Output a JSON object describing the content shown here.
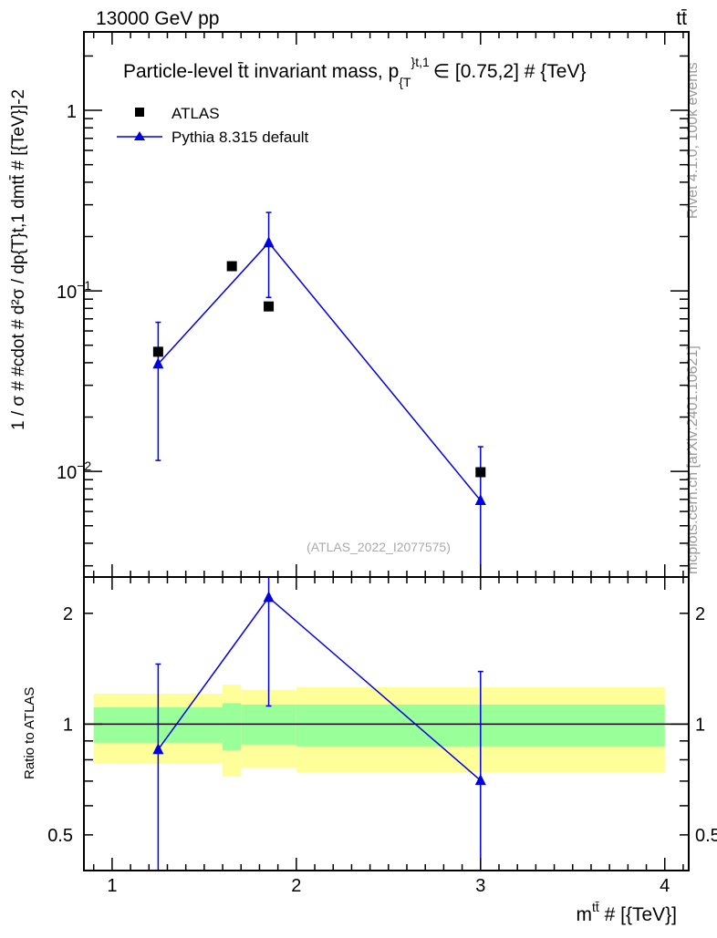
{
  "header": {
    "left": "13000 GeV pp",
    "right": "tt̄"
  },
  "side_labels": {
    "rivet": "Rivet 4.1.0,  100k events",
    "mcplots": "mcplots.cern.ch [arXiv:2401.10621]"
  },
  "analysis_id": "(ATLAS_2022_I2077575)",
  "colors": {
    "data": "#000000",
    "mc": "#0000e0",
    "band_inner": "#99ff99",
    "band_outer": "#ffff99"
  },
  "chart_data": [
    {
      "type": "scatter",
      "panel": "main",
      "title": "Particle-level t̄t invariant mass, p_{T}^{t,1} ∈ [0.75,2] # {TeV}",
      "title_main": "Particle-level t̄t invariant mass, p",
      "title_sub": "{T",
      "title_sup": "}t,1",
      "title_tail": "∈ [0.75,2] # {TeV}",
      "ylabel": "1 / σ # #cdot # d²σ / dp_{T}^{t,1} dm^{tt̄} # [{TeV}^-2]",
      "ylabel_text": "1 / σ # #cdot # d²σ / dp{T}t,1 dmtt̄ # [{TeV}]-2",
      "yscale": "log",
      "xlim": [
        0.847,
        4.13
      ],
      "ylim": [
        0.0026,
        2.72
      ],
      "yticks": [
        {
          "value": 1,
          "label": "1"
        },
        {
          "value": 0.1,
          "label": "10",
          "exp": "−1"
        },
        {
          "value": 0.01,
          "label": "10",
          "exp": "−2"
        }
      ],
      "legend": {
        "placement": "top-left",
        "entries": [
          "ATLAS",
          "Pythia 8.315 default"
        ]
      },
      "series": [
        {
          "name": "ATLAS",
          "marker": "square",
          "x": [
            1.25,
            1.65,
            1.85,
            3.0
          ],
          "y": [
            0.046,
            0.137,
            0.082,
            0.0099
          ]
        },
        {
          "name": "Pythia 8.315 default",
          "marker": "triangle",
          "x": [
            1.25,
            1.85,
            3.0
          ],
          "y": [
            0.0394,
            0.185,
            0.0069
          ],
          "yerr_up": [
            0.067,
            0.272,
            0.0137
          ],
          "yerr_down": [
            0.0115,
            0.092,
            0.001
          ]
        }
      ]
    },
    {
      "type": "line",
      "panel": "ratio",
      "ylabel": "Ratio to ATLAS",
      "xlabel": "m^{tt̄} # [{TeV}]",
      "xlabel_main": "m",
      "xlabel_sup": "tt̄",
      "xlabel_tail": " # [{TeV}]",
      "yscale": "log",
      "xlim": [
        0.847,
        4.13
      ],
      "ylim": [
        0.4,
        2.51
      ],
      "xticks": [
        {
          "value": 1,
          "label": "1"
        },
        {
          "value": 2,
          "label": "2"
        },
        {
          "value": 3,
          "label": "3"
        },
        {
          "value": 4,
          "label": "4"
        }
      ],
      "yticks": [
        {
          "value": 0.5,
          "label": "0.5"
        },
        {
          "value": 1,
          "label": "1"
        },
        {
          "value": 2,
          "label": "2"
        }
      ],
      "bands": [
        {
          "x0": 0.9,
          "x1": 1.6,
          "inner": [
            0.89,
            1.11
          ],
          "outer": [
            0.78,
            1.21
          ]
        },
        {
          "x0": 1.6,
          "x1": 1.7,
          "inner": [
            0.85,
            1.14
          ],
          "outer": [
            0.72,
            1.28
          ]
        },
        {
          "x0": 1.7,
          "x1": 2.0,
          "inner": [
            0.88,
            1.13
          ],
          "outer": [
            0.76,
            1.24
          ]
        },
        {
          "x0": 2.0,
          "x1": 4.0,
          "inner": [
            0.87,
            1.13
          ],
          "outer": [
            0.74,
            1.26
          ]
        }
      ],
      "series": [
        {
          "name": "Pythia 8.315 default / ATLAS",
          "x": [
            1.25,
            1.85,
            3.0
          ],
          "y": [
            0.853,
            2.21,
            0.703
          ],
          "yerr_up": [
            1.456,
            3.0,
            1.39
          ],
          "yerr_down": [
            0.3,
            1.12,
            0.3
          ]
        }
      ]
    }
  ]
}
